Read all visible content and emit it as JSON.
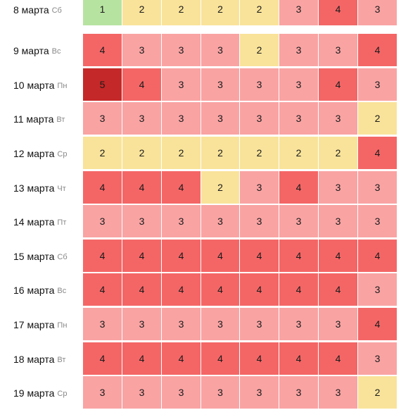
{
  "palette": {
    "1": "#b7e3a1",
    "2": "#f9e39a",
    "3": "#f9a3a3",
    "4": "#f46666",
    "5": "#c52828"
  },
  "rows": [
    {
      "date": "8 марта",
      "dow": "Сб",
      "values": [
        1,
        2,
        2,
        2,
        2,
        3,
        4,
        3
      ]
    },
    {
      "date": "9 марта",
      "dow": "Вс",
      "values": [
        4,
        3,
        3,
        3,
        2,
        3,
        3,
        4
      ]
    },
    {
      "date": "10 марта",
      "dow": "Пн",
      "values": [
        5,
        4,
        3,
        3,
        3,
        3,
        4,
        3
      ]
    },
    {
      "date": "11 марта",
      "dow": "Вт",
      "values": [
        3,
        3,
        3,
        3,
        3,
        3,
        3,
        2
      ]
    },
    {
      "date": "12 марта",
      "dow": "Ср",
      "values": [
        2,
        2,
        2,
        2,
        2,
        2,
        2,
        4
      ]
    },
    {
      "date": "13 марта",
      "dow": "Чт",
      "values": [
        4,
        4,
        4,
        2,
        3,
        4,
        3,
        3
      ]
    },
    {
      "date": "14 марта",
      "dow": "Пт",
      "values": [
        3,
        3,
        3,
        3,
        3,
        3,
        3,
        3
      ]
    },
    {
      "date": "15 марта",
      "dow": "Сб",
      "values": [
        4,
        4,
        4,
        4,
        4,
        4,
        4,
        4
      ]
    },
    {
      "date": "16 марта",
      "dow": "Вс",
      "values": [
        4,
        4,
        4,
        4,
        4,
        4,
        4,
        3
      ]
    },
    {
      "date": "17 марта",
      "dow": "Пн",
      "values": [
        3,
        3,
        3,
        3,
        3,
        3,
        3,
        4
      ]
    },
    {
      "date": "18 марта",
      "dow": "Вт",
      "values": [
        4,
        4,
        4,
        4,
        4,
        4,
        4,
        3
      ]
    },
    {
      "date": "19 марта",
      "dow": "Ср",
      "values": [
        3,
        3,
        3,
        3,
        3,
        3,
        3,
        2
      ]
    }
  ]
}
